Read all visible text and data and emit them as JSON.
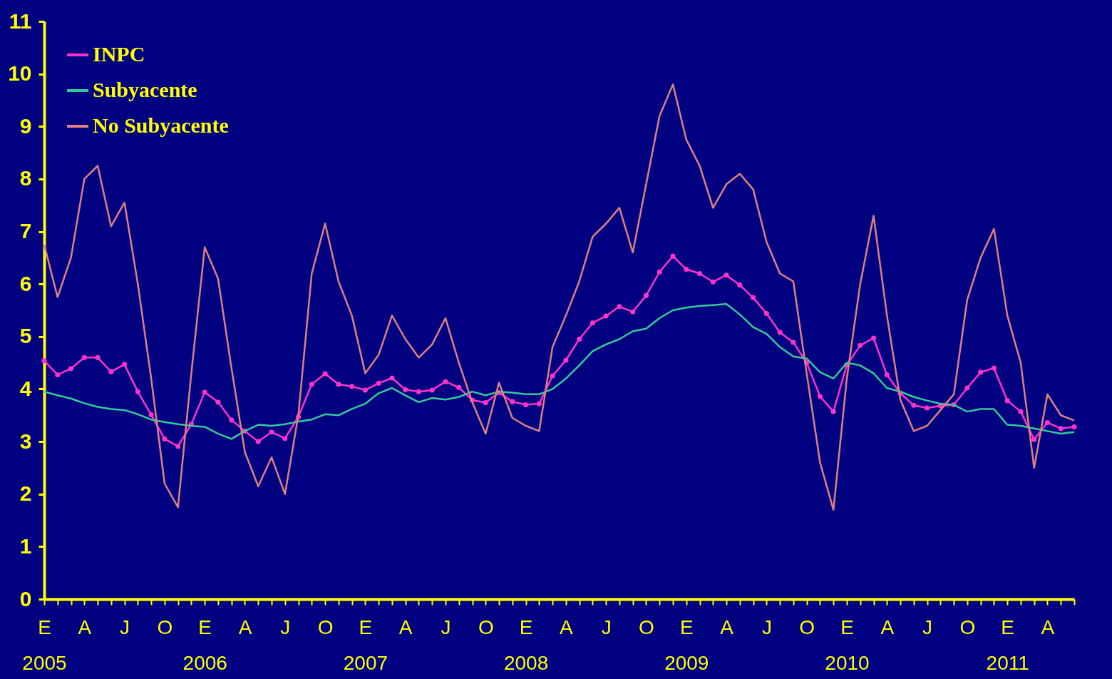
{
  "chart_data": {
    "type": "line",
    "categories": [
      "E\n2005",
      null,
      null,
      "A",
      null,
      null,
      "J",
      null,
      null,
      "O",
      null,
      null,
      "E\n2006",
      null,
      null,
      "A",
      null,
      null,
      "J",
      null,
      null,
      "O",
      null,
      null,
      "E\n2007",
      null,
      null,
      "A",
      null,
      null,
      "J",
      null,
      null,
      "O",
      null,
      null,
      "E\n2008",
      null,
      null,
      "A",
      null,
      null,
      "J",
      null,
      null,
      "O",
      null,
      null,
      "E\n2009",
      null,
      null,
      "A",
      null,
      null,
      "J",
      null,
      null,
      "O",
      null,
      null,
      "E\n2010",
      null,
      null,
      "A",
      null,
      null,
      "J",
      null,
      null,
      "O",
      null,
      null,
      "E\n2011",
      null,
      null,
      "A",
      null,
      null
    ],
    "series": [
      {
        "name": "INPC",
        "color": "#ff33cc",
        "marker": "circle",
        "values": [
          4.54,
          4.27,
          4.39,
          4.6,
          4.6,
          4.33,
          4.47,
          3.95,
          3.51,
          3.05,
          2.91,
          3.33,
          3.94,
          3.75,
          3.41,
          3.2,
          3.0,
          3.18,
          3.06,
          3.47,
          4.09,
          4.29,
          4.09,
          4.05,
          3.98,
          4.11,
          4.21,
          3.99,
          3.95,
          3.98,
          4.14,
          4.03,
          3.79,
          3.74,
          3.93,
          3.76,
          3.7,
          3.72,
          4.25,
          4.55,
          4.95,
          5.26,
          5.39,
          5.57,
          5.47,
          5.78,
          6.23,
          6.53,
          6.28,
          6.2,
          6.04,
          6.17,
          5.98,
          5.74,
          5.44,
          5.08,
          4.89,
          4.5,
          3.86,
          3.57,
          4.46,
          4.83,
          4.97,
          4.27,
          3.92,
          3.69,
          3.64,
          3.68,
          3.7,
          4.02,
          4.32,
          4.4,
          3.78,
          3.57,
          3.04,
          3.36,
          3.25,
          3.28
        ]
      },
      {
        "name": "Subyacente",
        "color": "#33cc99",
        "values": [
          3.95,
          3.88,
          3.82,
          3.73,
          3.66,
          3.62,
          3.6,
          3.52,
          3.42,
          3.37,
          3.33,
          3.3,
          3.28,
          3.15,
          3.05,
          3.2,
          3.32,
          3.3,
          3.33,
          3.38,
          3.42,
          3.52,
          3.5,
          3.62,
          3.72,
          3.92,
          4.02,
          3.88,
          3.75,
          3.83,
          3.8,
          3.85,
          3.95,
          3.88,
          3.95,
          3.93,
          3.9,
          3.9,
          4.0,
          4.2,
          4.45,
          4.72,
          4.85,
          4.95,
          5.1,
          5.15,
          5.35,
          5.5,
          5.55,
          5.58,
          5.6,
          5.62,
          5.42,
          5.18,
          5.05,
          4.8,
          4.62,
          4.58,
          4.32,
          4.2,
          4.5,
          4.45,
          4.3,
          4.02,
          3.95,
          3.85,
          3.78,
          3.72,
          3.7,
          3.57,
          3.62,
          3.62,
          3.32,
          3.3,
          3.25,
          3.2,
          3.15,
          3.18
        ]
      },
      {
        "name": "No Subyacente",
        "color": "#e08080",
        "values": [
          6.75,
          5.75,
          6.5,
          8.0,
          8.25,
          7.1,
          7.55,
          6.0,
          4.2,
          2.2,
          1.75,
          4.3,
          6.7,
          6.1,
          4.4,
          2.8,
          2.15,
          2.7,
          2.0,
          3.5,
          6.2,
          7.15,
          6.05,
          5.4,
          4.3,
          4.65,
          5.4,
          4.95,
          4.6,
          4.85,
          5.35,
          4.5,
          3.75,
          3.15,
          4.12,
          3.45,
          3.3,
          3.2,
          4.8,
          5.4,
          6.05,
          6.9,
          7.15,
          7.45,
          6.6,
          7.9,
          9.2,
          9.8,
          8.75,
          8.25,
          7.45,
          7.9,
          8.1,
          7.8,
          6.8,
          6.2,
          6.05,
          4.3,
          2.6,
          1.7,
          4.2,
          6.0,
          7.3,
          5.4,
          3.8,
          3.2,
          3.3,
          3.6,
          3.9,
          5.7,
          6.5,
          7.05,
          5.4,
          4.5,
          2.5,
          3.9,
          3.5,
          3.4
        ]
      }
    ],
    "ylim": [
      0,
      11
    ],
    "yticks": [
      0,
      1,
      2,
      3,
      4,
      5,
      6,
      7,
      8,
      9,
      10,
      11
    ],
    "grid": false,
    "legend": "top left"
  }
}
